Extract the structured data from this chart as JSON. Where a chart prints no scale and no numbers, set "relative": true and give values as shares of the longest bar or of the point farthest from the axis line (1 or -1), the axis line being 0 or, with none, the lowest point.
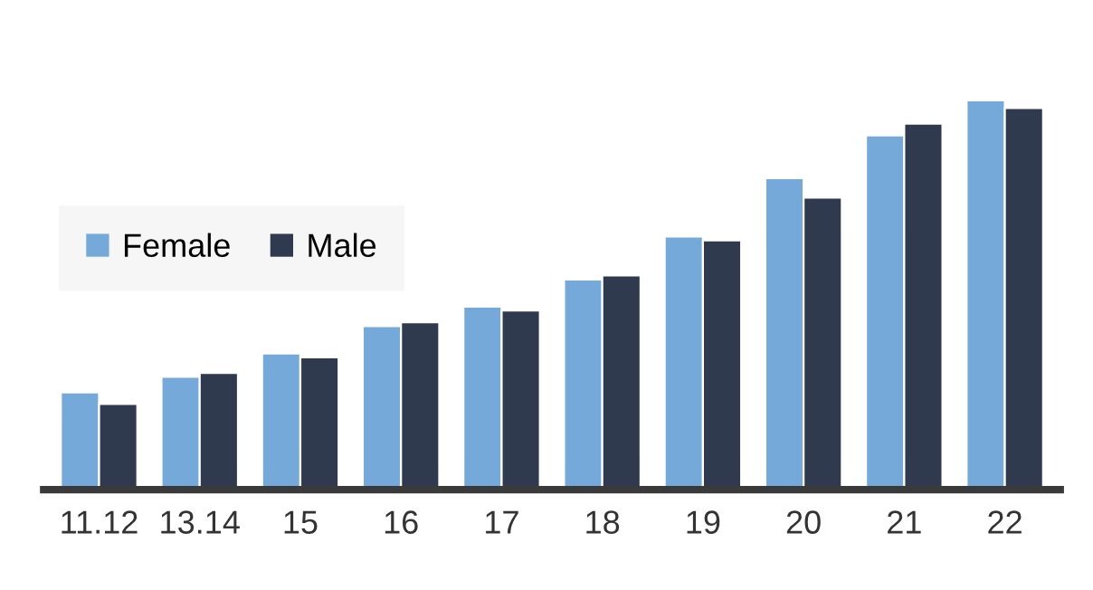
{
  "chart_data": {
    "type": "bar",
    "relative": true,
    "categories": [
      "11.12",
      "13.14",
      "15",
      "16",
      "17",
      "18",
      "19",
      "20",
      "21",
      "22"
    ],
    "series": [
      {
        "name": "Female",
        "color": "#74a9d9",
        "values": [
          0.25,
          0.29,
          0.35,
          0.42,
          0.47,
          0.54,
          0.65,
          0.8,
          0.91,
          1.0
        ]
      },
      {
        "name": "Male",
        "color": "#2f3a4f",
        "values": [
          0.22,
          0.3,
          0.34,
          0.43,
          0.46,
          0.55,
          0.64,
          0.75,
          0.94,
          0.98
        ]
      }
    ],
    "legend": "left",
    "grid": false
  }
}
